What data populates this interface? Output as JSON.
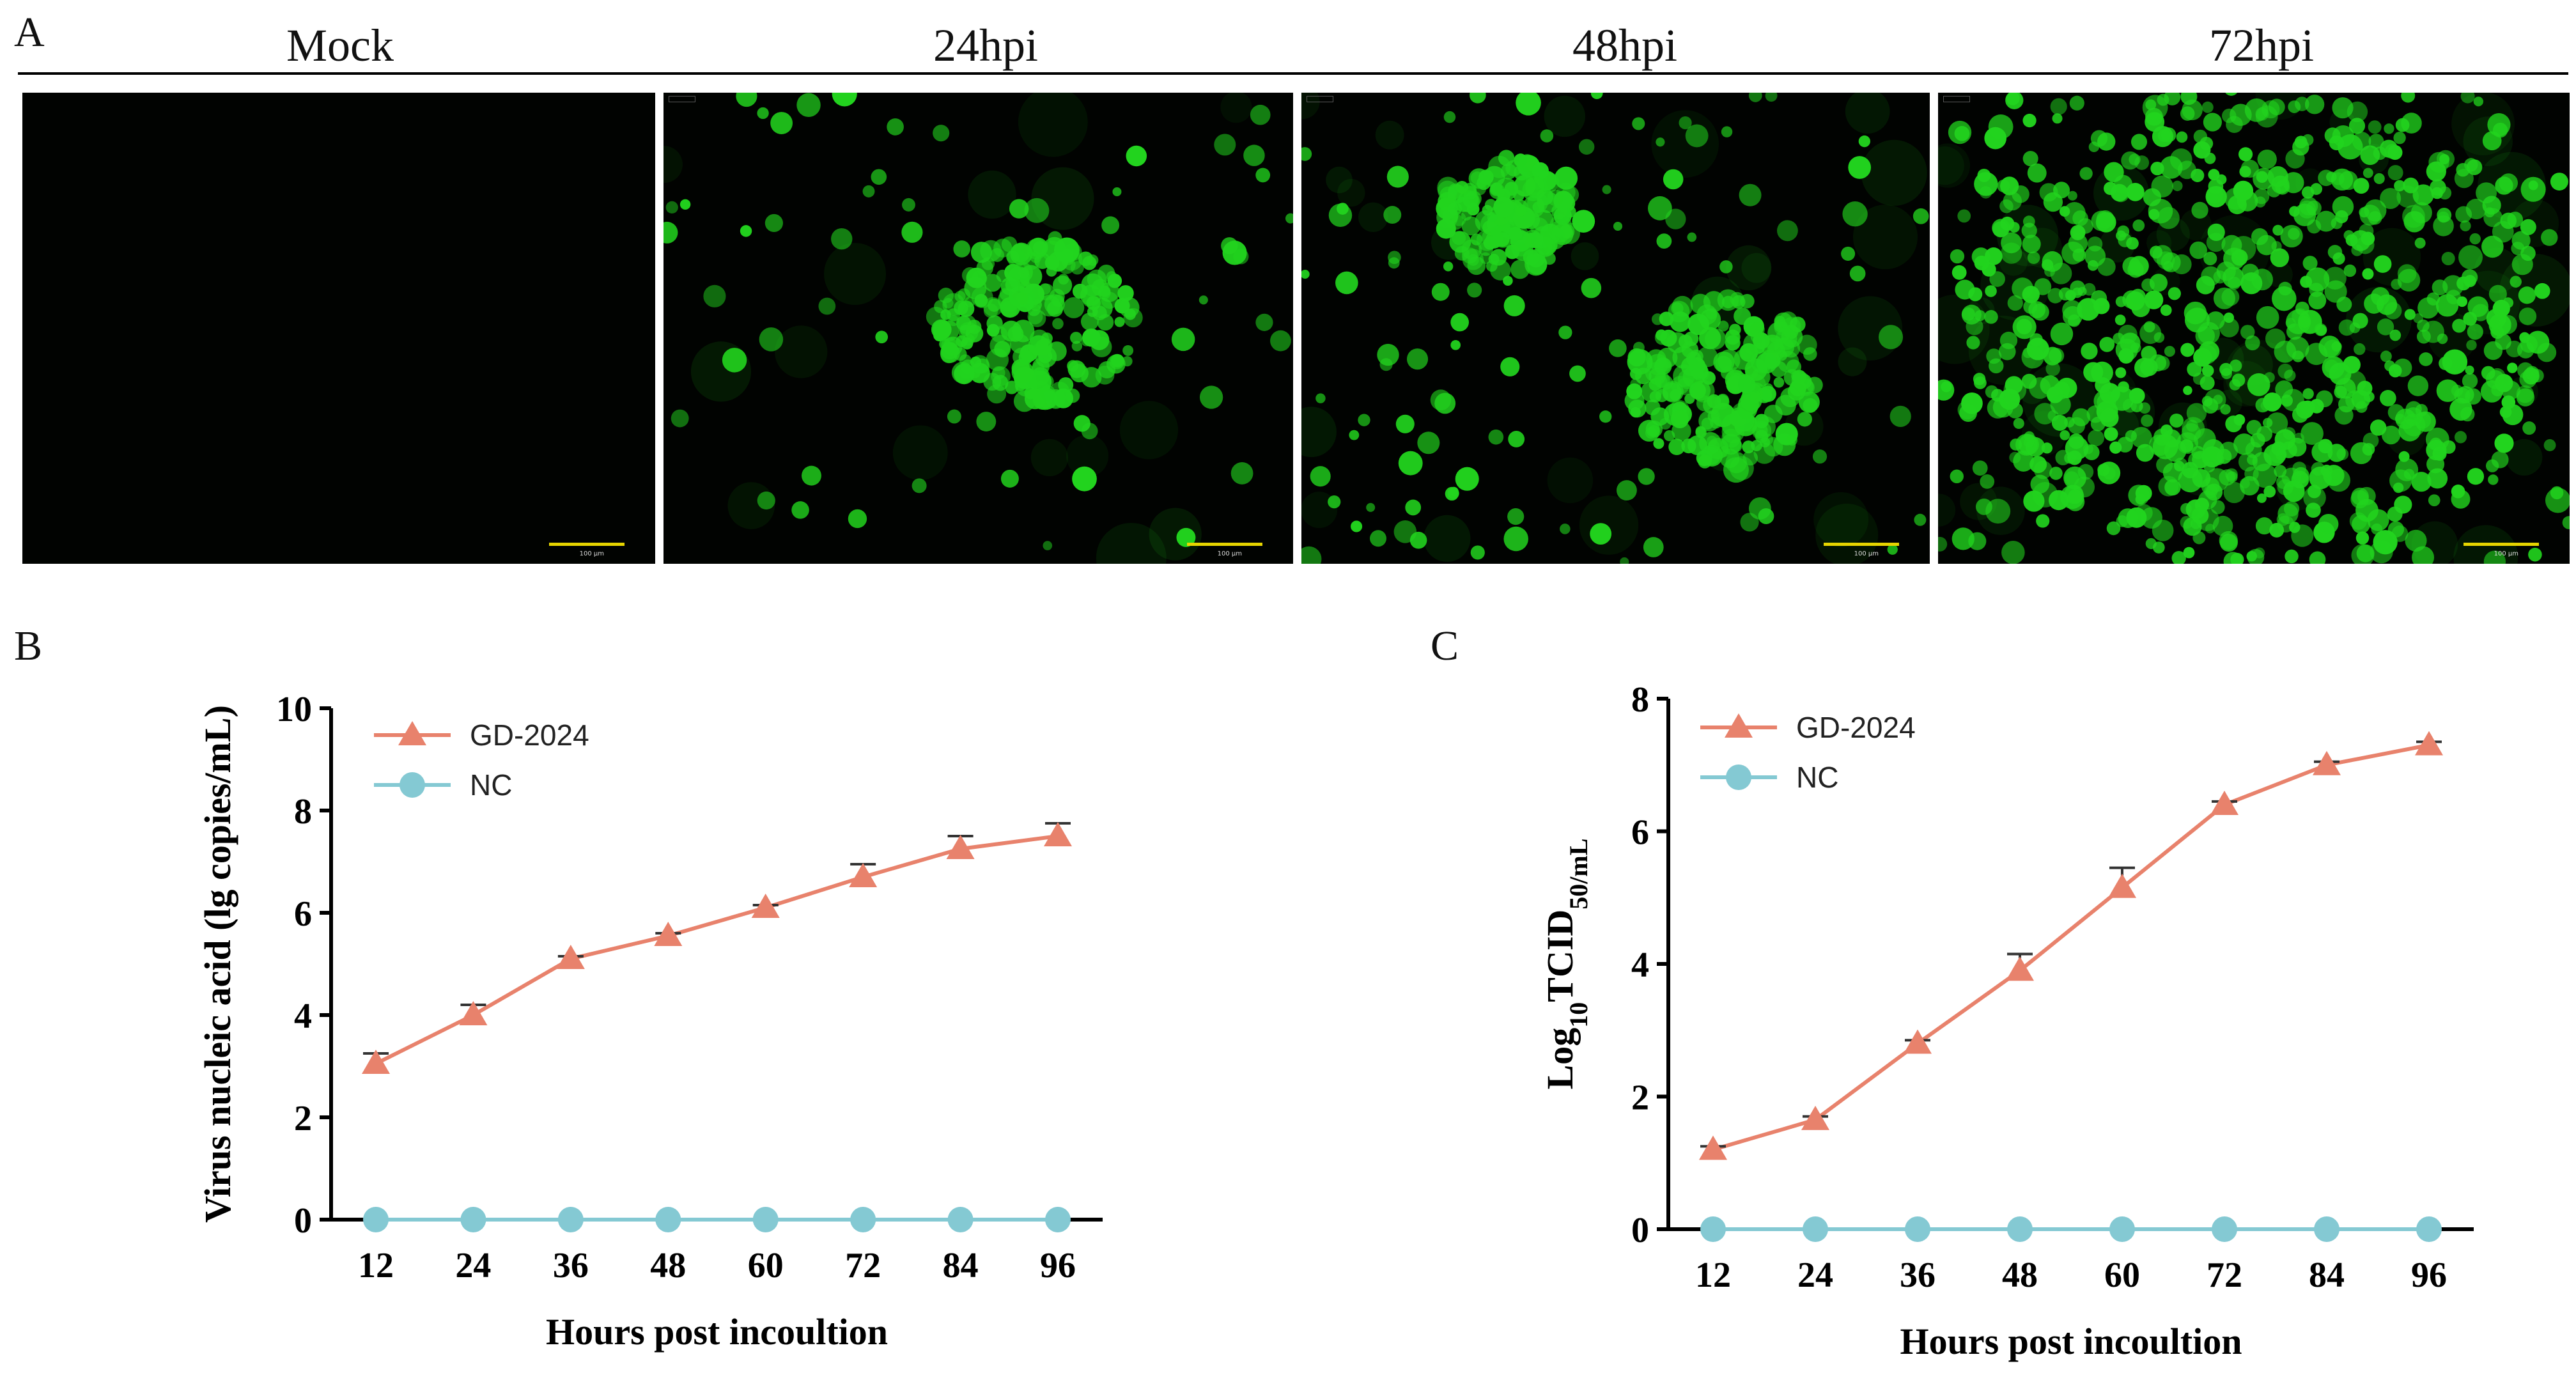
{
  "panels": {
    "a_letter": "A",
    "b_letter": "B",
    "c_letter": "C"
  },
  "micrographs": {
    "labels": [
      "Mock",
      "24hpi",
      "48hpi",
      "72hpi"
    ],
    "scale_bar_text": "100 μm",
    "signal_color": "#22d41e",
    "signal_level": [
      0.0,
      0.25,
      0.45,
      0.9
    ]
  },
  "colors": {
    "gd2024": "#e8826c",
    "nc": "#84c9d3",
    "axis": "#000000"
  },
  "chart_data": [
    {
      "type": "line",
      "panel": "B",
      "xlabel": "Hours post incoultion",
      "ylabel": "Virus nucleic acid (lg copies/mL)",
      "x": [
        12,
        24,
        36,
        48,
        60,
        72,
        84,
        96
      ],
      "ylim": [
        0,
        10
      ],
      "yticks": [
        0,
        2,
        4,
        6,
        8,
        10
      ],
      "series": [
        {
          "name": "GD-2024",
          "marker": "triangle",
          "values": [
            3.05,
            4.0,
            5.1,
            5.55,
            6.1,
            6.7,
            7.25,
            7.5
          ],
          "error": [
            0.2,
            0.2,
            0.05,
            0.05,
            0.05,
            0.25,
            0.25,
            0.25
          ]
        },
        {
          "name": "NC",
          "marker": "circle",
          "values": [
            0,
            0,
            0,
            0,
            0,
            0,
            0,
            0
          ]
        }
      ],
      "legend": "top-left",
      "grid": false
    },
    {
      "type": "line",
      "panel": "C",
      "xlabel": "Hours post incoultion",
      "ylabel_main": "Log",
      "ylabel_sub1": "10",
      "ylabel_mid": "TCID",
      "ylabel_sub2": "50/mL",
      "x": [
        12,
        24,
        36,
        48,
        60,
        72,
        84,
        96
      ],
      "ylim": [
        0,
        8
      ],
      "yticks": [
        0,
        2,
        4,
        6,
        8
      ],
      "series": [
        {
          "name": "GD-2024",
          "marker": "triangle",
          "values": [
            1.2,
            1.65,
            2.8,
            3.9,
            5.15,
            6.4,
            7.0,
            7.3
          ],
          "error": [
            0.05,
            0.05,
            0.05,
            0.25,
            0.3,
            0.05,
            0.05,
            0.05
          ]
        },
        {
          "name": "NC",
          "marker": "circle",
          "values": [
            0,
            0,
            0,
            0,
            0,
            0,
            0,
            0
          ]
        }
      ],
      "legend": "top-left",
      "grid": false
    }
  ]
}
